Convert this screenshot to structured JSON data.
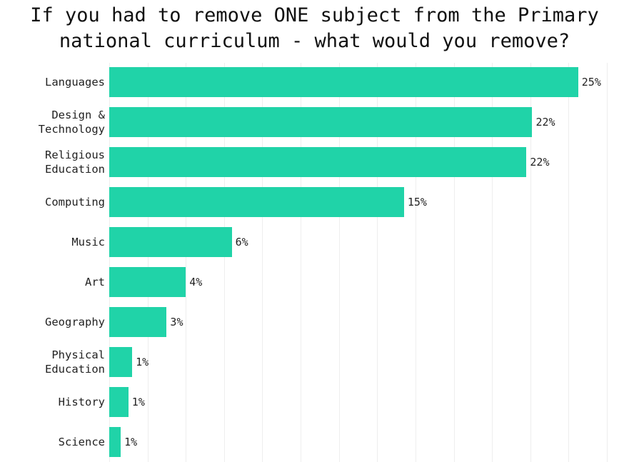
{
  "chart_data": {
    "type": "barh",
    "title": "If you had to remove ONE subject from the Primary national curriculum - what would you remove?",
    "categories": [
      "Languages",
      "Design & Technology",
      "Religious Education",
      "Computing",
      "Music",
      "Art",
      "Geography",
      "Physical Education",
      "History",
      "Science"
    ],
    "values": [
      24.5,
      22.1,
      21.8,
      15.4,
      6.4,
      4.0,
      3.0,
      1.2,
      1.0,
      0.6
    ],
    "value_labels": [
      "25%",
      "22%",
      "22%",
      "15%",
      "6%",
      "4%",
      "3%",
      "1%",
      "1%",
      "1%"
    ],
    "color": "#20d3a8",
    "xlim": [
      0,
      26
    ],
    "xticks": [
      0,
      2,
      4,
      6,
      8,
      10,
      12,
      14,
      16,
      18,
      20,
      22,
      24,
      26
    ],
    "grid": true
  }
}
